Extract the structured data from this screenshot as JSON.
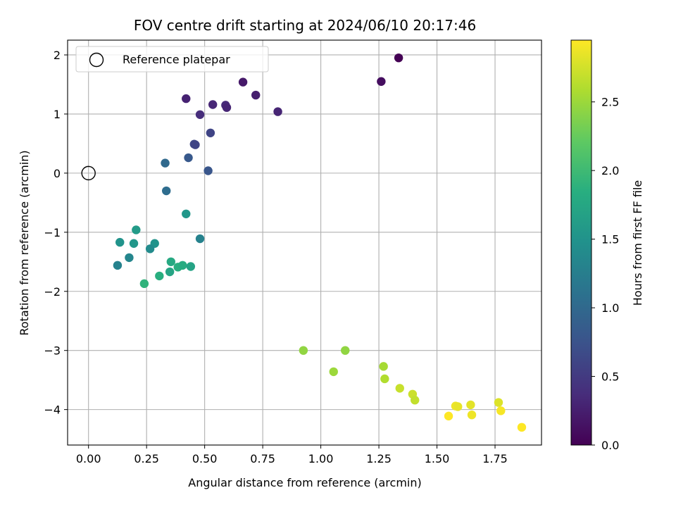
{
  "chart_data": {
    "type": "scatter",
    "title": "FOV centre drift starting at 2024/06/10 20:17:46",
    "xlabel": "Angular distance from reference (arcmin)",
    "ylabel": "Rotation from reference (arcmin)",
    "xlim": [
      -0.09,
      1.95
    ],
    "ylim": [
      -4.6,
      2.25
    ],
    "xticks": [
      "0.00",
      "0.25",
      "0.50",
      "0.75",
      "1.00",
      "1.25",
      "1.50",
      "1.75"
    ],
    "xtick_values": [
      0,
      0.25,
      0.5,
      0.75,
      1.0,
      1.25,
      1.5,
      1.75
    ],
    "yticks": [
      "−4",
      "−3",
      "−2",
      "−1",
      "0",
      "1",
      "2"
    ],
    "ytick_values": [
      -4,
      -3,
      -2,
      -1,
      0,
      1,
      2
    ],
    "grid": true,
    "legend": {
      "label": "Reference platepar",
      "placement": "top-left"
    },
    "reference_point": {
      "x": 0.0,
      "y": 0.0
    },
    "colorbar": {
      "label": "Hours from first FF file",
      "colormap": "viridis",
      "range": [
        0.0,
        2.95
      ],
      "ticks": [
        "0.0",
        "0.5",
        "1.0",
        "1.5",
        "2.0",
        "2.5"
      ],
      "tick_values": [
        0.0,
        0.5,
        1.0,
        1.5,
        2.0,
        2.5
      ]
    },
    "points": [
      {
        "x": 1.335,
        "y": 1.95,
        "c": 0.0
      },
      {
        "x": 1.26,
        "y": 1.55,
        "c": 0.1
      },
      {
        "x": 0.665,
        "y": 1.54,
        "c": 0.2
      },
      {
        "x": 0.72,
        "y": 1.32,
        "c": 0.25
      },
      {
        "x": 0.42,
        "y": 1.26,
        "c": 0.28
      },
      {
        "x": 0.59,
        "y": 1.15,
        "c": 0.35
      },
      {
        "x": 0.535,
        "y": 1.16,
        "c": 0.32
      },
      {
        "x": 0.595,
        "y": 1.11,
        "c": 0.3
      },
      {
        "x": 0.48,
        "y": 0.99,
        "c": 0.38
      },
      {
        "x": 0.815,
        "y": 1.04,
        "c": 0.3
      },
      {
        "x": 0.525,
        "y": 0.68,
        "c": 0.6
      },
      {
        "x": 0.455,
        "y": 0.49,
        "c": 0.63
      },
      {
        "x": 0.46,
        "y": 0.48,
        "c": 0.6
      },
      {
        "x": 0.43,
        "y": 0.26,
        "c": 0.82
      },
      {
        "x": 0.33,
        "y": 0.17,
        "c": 1.0
      },
      {
        "x": 0.515,
        "y": 0.04,
        "c": 0.78
      },
      {
        "x": 0.335,
        "y": -0.3,
        "c": 1.05
      },
      {
        "x": 0.42,
        "y": -0.69,
        "c": 1.55
      },
      {
        "x": 0.48,
        "y": -1.11,
        "c": 1.3
      },
      {
        "x": 0.205,
        "y": -0.96,
        "c": 1.6
      },
      {
        "x": 0.135,
        "y": -1.17,
        "c": 1.5
      },
      {
        "x": 0.195,
        "y": -1.19,
        "c": 1.55
      },
      {
        "x": 0.285,
        "y": -1.19,
        "c": 1.5
      },
      {
        "x": 0.265,
        "y": -1.28,
        "c": 1.4
      },
      {
        "x": 0.175,
        "y": -1.43,
        "c": 1.35
      },
      {
        "x": 0.125,
        "y": -1.56,
        "c": 1.3
      },
      {
        "x": 0.355,
        "y": -1.5,
        "c": 1.78
      },
      {
        "x": 0.385,
        "y": -1.59,
        "c": 1.85
      },
      {
        "x": 0.405,
        "y": -1.56,
        "c": 1.8
      },
      {
        "x": 0.44,
        "y": -1.58,
        "c": 1.7
      },
      {
        "x": 0.35,
        "y": -1.67,
        "c": 1.72
      },
      {
        "x": 0.305,
        "y": -1.74,
        "c": 1.85
      },
      {
        "x": 0.24,
        "y": -1.87,
        "c": 1.9
      },
      {
        "x": 0.925,
        "y": -3.0,
        "c": 2.45
      },
      {
        "x": 1.105,
        "y": -3.0,
        "c": 2.45
      },
      {
        "x": 1.055,
        "y": -3.36,
        "c": 2.5
      },
      {
        "x": 1.27,
        "y": -3.27,
        "c": 2.55
      },
      {
        "x": 1.275,
        "y": -3.48,
        "c": 2.6
      },
      {
        "x": 1.34,
        "y": -3.64,
        "c": 2.7
      },
      {
        "x": 1.395,
        "y": -3.74,
        "c": 2.72
      },
      {
        "x": 1.405,
        "y": -3.84,
        "c": 2.68
      },
      {
        "x": 1.58,
        "y": -3.94,
        "c": 2.88
      },
      {
        "x": 1.59,
        "y": -3.95,
        "c": 2.85
      },
      {
        "x": 1.645,
        "y": -3.92,
        "c": 2.83
      },
      {
        "x": 1.55,
        "y": -4.11,
        "c": 2.95
      },
      {
        "x": 1.65,
        "y": -4.09,
        "c": 2.88
      },
      {
        "x": 1.765,
        "y": -3.88,
        "c": 2.8
      },
      {
        "x": 1.775,
        "y": -4.02,
        "c": 2.92
      },
      {
        "x": 1.865,
        "y": -4.3,
        "c": 2.95
      }
    ]
  }
}
